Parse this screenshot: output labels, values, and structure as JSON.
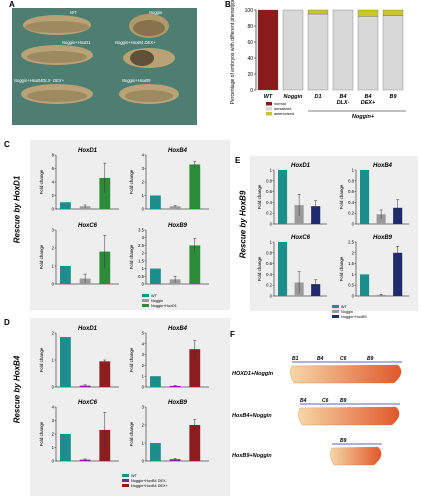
{
  "panel_labels": {
    "a": "A",
    "b": "B",
    "c": "C",
    "d": "D",
    "e": "E",
    "f": "F"
  },
  "panel_a": {
    "captions": [
      "WT",
      "Noggin",
      "Noggin+HoxD1",
      "Noggin+HoxB4 DEX+",
      "Noggin+HoxB4DLX- DEX+",
      "Noggin+HoxB9"
    ]
  },
  "rescue_labels": {
    "c": "Rescue by HoxD1",
    "d": "Rescue by HoxB4",
    "e": "Rescue by HoxB9"
  },
  "colors": {
    "wt": "#1c8e8c",
    "noggin": "#9a9a9a",
    "hoxd1": "#2e8b3a",
    "hoxb4": "#8b1f1f",
    "hoxb9": "#1f2b6e",
    "normal": "#8b1a1a",
    "dorsalized": "#d8d8d8",
    "anterior": "#c9c632"
  },
  "chart_data": [
    {
      "id": "B",
      "type": "bar",
      "stacked": true,
      "ylabel": "Percentage of embryos with different phenotypes",
      "categories": [
        "WT",
        "Noggin",
        "D1",
        "B4 DLX-",
        "B4 DEX+",
        "B9"
      ],
      "group_label": "Noggin+",
      "ylim": [
        0,
        100
      ],
      "yticks": [
        0,
        20,
        40,
        60,
        80,
        100
      ],
      "series": [
        {
          "name": "normal",
          "values": [
            100,
            0,
            0,
            0,
            0,
            0
          ]
        },
        {
          "name": "dorsalized",
          "values": [
            0,
            100,
            95,
            100,
            92,
            93
          ]
        },
        {
          "name": "anterior",
          "values": [
            0,
            0,
            5,
            0,
            8,
            7
          ]
        }
      ],
      "legend": [
        "normal",
        "dorsalized",
        "anteriorized"
      ]
    },
    {
      "id": "C1",
      "type": "bar",
      "title": "HoxD1",
      "ylabel": "Fold change",
      "ylim": [
        0,
        8
      ],
      "yticks": [
        0,
        2,
        4,
        6,
        8
      ],
      "values": [
        1.0,
        0.4,
        4.6
      ],
      "errors": [
        0,
        0.2,
        2.2
      ],
      "colors": [
        "#1c8e8c",
        "#9a9a9a",
        "#2e8b3a"
      ]
    },
    {
      "id": "C2",
      "type": "bar",
      "title": "HoxB4",
      "ylabel": "Fold change",
      "ylim": [
        0,
        4
      ],
      "yticks": [
        0,
        1,
        2,
        3,
        4
      ],
      "values": [
        1.0,
        0.2,
        3.3
      ],
      "errors": [
        0,
        0.05,
        0.2
      ],
      "colors": [
        "#1c8e8c",
        "#9a9a9a",
        "#2e8b3a"
      ]
    },
    {
      "id": "C3",
      "type": "bar",
      "title": "HoxC6",
      "ylabel": "Fold change",
      "ylim": [
        0,
        3
      ],
      "yticks": [
        0,
        1,
        2,
        3
      ],
      "values": [
        1.0,
        0.3,
        1.8
      ],
      "errors": [
        0,
        0.25,
        0.9
      ],
      "colors": [
        "#1c8e8c",
        "#9a9a9a",
        "#2e8b3a"
      ]
    },
    {
      "id": "C4",
      "type": "bar",
      "title": "HoxB9",
      "ylabel": "Fold change",
      "ylim": [
        0,
        3.5
      ],
      "yticks": [
        0,
        0.5,
        1,
        1.5,
        2,
        2.5,
        3,
        3.5
      ],
      "values": [
        1.0,
        0.3,
        2.5
      ],
      "errors": [
        0,
        0.2,
        0.45
      ],
      "colors": [
        "#1c8e8c",
        "#9a9a9a",
        "#2e8b3a"
      ]
    },
    {
      "id": "D1",
      "type": "bar",
      "title": "HoxD1",
      "ylabel": "Fold change",
      "ylim": [
        0,
        2
      ],
      "yticks": [
        0,
        1,
        2
      ],
      "values": [
        1.85,
        0.05,
        0.95
      ],
      "errors": [
        0,
        0.03,
        0.05
      ],
      "colors": [
        "#1c8e8c",
        "#7a2a8a",
        "#8b1f1f"
      ]
    },
    {
      "id": "D2",
      "type": "bar",
      "title": "HoxB4",
      "ylabel": "Fold change",
      "ylim": [
        0,
        5
      ],
      "yticks": [
        0,
        1,
        2,
        3,
        4,
        5
      ],
      "values": [
        1.0,
        0.1,
        3.5
      ],
      "errors": [
        0,
        0.05,
        0.8
      ],
      "colors": [
        "#1c8e8c",
        "#7a2a8a",
        "#8b1f1f"
      ]
    },
    {
      "id": "D3",
      "type": "bar",
      "title": "HoxC6",
      "ylabel": "Fold change",
      "ylim": [
        0,
        4
      ],
      "yticks": [
        0,
        1,
        2,
        3,
        4
      ],
      "values": [
        2.0,
        0.1,
        2.3
      ],
      "errors": [
        0,
        0.05,
        1.3
      ],
      "colors": [
        "#1c8e8c",
        "#7a2a8a",
        "#8b1f1f"
      ]
    },
    {
      "id": "D4",
      "type": "bar",
      "title": "HoxB9",
      "ylabel": "Fold change",
      "ylim": [
        0,
        3
      ],
      "yticks": [
        0,
        1,
        2,
        3
      ],
      "values": [
        1.0,
        0.1,
        2.0
      ],
      "errors": [
        0,
        0.05,
        0.3
      ],
      "colors": [
        "#1c8e8c",
        "#7a2a8a",
        "#8b1f1f"
      ]
    },
    {
      "id": "E1",
      "type": "bar",
      "title": "HoxD1",
      "ylabel": "Fold change",
      "ylim": [
        0,
        1.0
      ],
      "yticks": [
        0,
        0.2,
        0.4,
        0.6,
        0.8,
        1.0
      ],
      "values": [
        1.0,
        0.35,
        0.33
      ],
      "errors": [
        0,
        0.2,
        0.1
      ],
      "colors": [
        "#1c8e8c",
        "#9a9a9a",
        "#1f2b6e"
      ]
    },
    {
      "id": "E2",
      "type": "bar",
      "title": "HoxB4",
      "ylabel": "Fold change",
      "ylim": [
        0,
        1.0
      ],
      "yticks": [
        0,
        0.2,
        0.4,
        0.6,
        0.8,
        1.0
      ],
      "values": [
        1.0,
        0.18,
        0.3
      ],
      "errors": [
        0,
        0.08,
        0.15
      ],
      "colors": [
        "#1c8e8c",
        "#9a9a9a",
        "#1f2b6e"
      ]
    },
    {
      "id": "E3",
      "type": "bar",
      "title": "HoxC6",
      "ylabel": "Fold change",
      "ylim": [
        0,
        1.0
      ],
      "yticks": [
        0,
        0.2,
        0.4,
        0.6,
        0.8,
        1.0
      ],
      "values": [
        1.0,
        0.25,
        0.22
      ],
      "errors": [
        0,
        0.2,
        0.08
      ],
      "colors": [
        "#1c8e8c",
        "#9a9a9a",
        "#1f2b6e"
      ]
    },
    {
      "id": "E4",
      "type": "bar",
      "title": "HoxB9",
      "ylabel": "Fold change",
      "ylim": [
        0,
        2.5
      ],
      "yticks": [
        0,
        0.5,
        1,
        1.5,
        2,
        2.5
      ],
      "values": [
        1.0,
        0.05,
        2.0
      ],
      "errors": [
        0,
        0.03,
        0.3
      ],
      "colors": [
        "#1c8e8c",
        "#9a9a9a",
        "#1f2b6e"
      ]
    }
  ],
  "legends": {
    "c": [
      "WT",
      "Noggin",
      "Noggin+HoxD1"
    ],
    "d": [
      "WT",
      "Noggin+HoxB4 DEX-",
      "Noggin+HoxB4 DEX+"
    ],
    "e": [
      "WT",
      "Noggin",
      "Noggin+HoxB9"
    ]
  },
  "panel_f": {
    "rows": [
      {
        "label": "HOXD1+Noggin",
        "markers": [
          "B1",
          "B4",
          "C6",
          "B9"
        ]
      },
      {
        "label": "HoxB4+Noggin",
        "markers": [
          "B4",
          "C6",
          "B9"
        ]
      },
      {
        "label": "HoxB9+Noggin",
        "markers": [
          "B9"
        ]
      }
    ]
  }
}
